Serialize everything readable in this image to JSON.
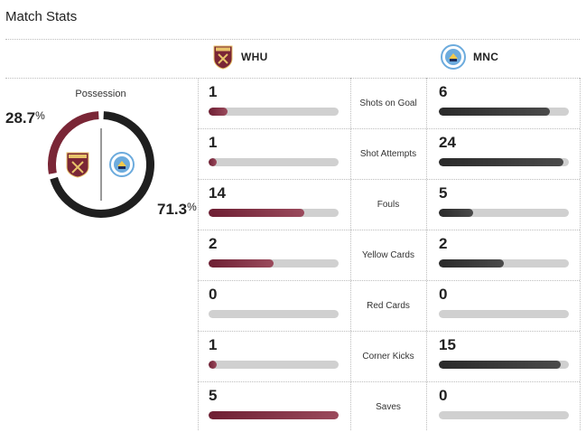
{
  "header": {
    "title": "Match Stats"
  },
  "teams": {
    "home": {
      "abbr": "WHU",
      "color": "#7a2636"
    },
    "away": {
      "abbr": "MNC",
      "color": "#222222"
    }
  },
  "possession": {
    "label": "Possession",
    "home_pct": "28.7",
    "away_pct": "71.3",
    "home_value": 28.7,
    "away_value": 71.3,
    "unit": "%"
  },
  "stats": [
    {
      "label": "Shots on Goal",
      "home": "1",
      "away": "6"
    },
    {
      "label": "Shot Attempts",
      "home": "1",
      "away": "24"
    },
    {
      "label": "Fouls",
      "home": "14",
      "away": "5"
    },
    {
      "label": "Yellow Cards",
      "home": "2",
      "away": "2"
    },
    {
      "label": "Red Cards",
      "home": "0",
      "away": "0"
    },
    {
      "label": "Corner Kicks",
      "home": "1",
      "away": "15"
    },
    {
      "label": "Saves",
      "home": "5",
      "away": "0"
    }
  ]
}
